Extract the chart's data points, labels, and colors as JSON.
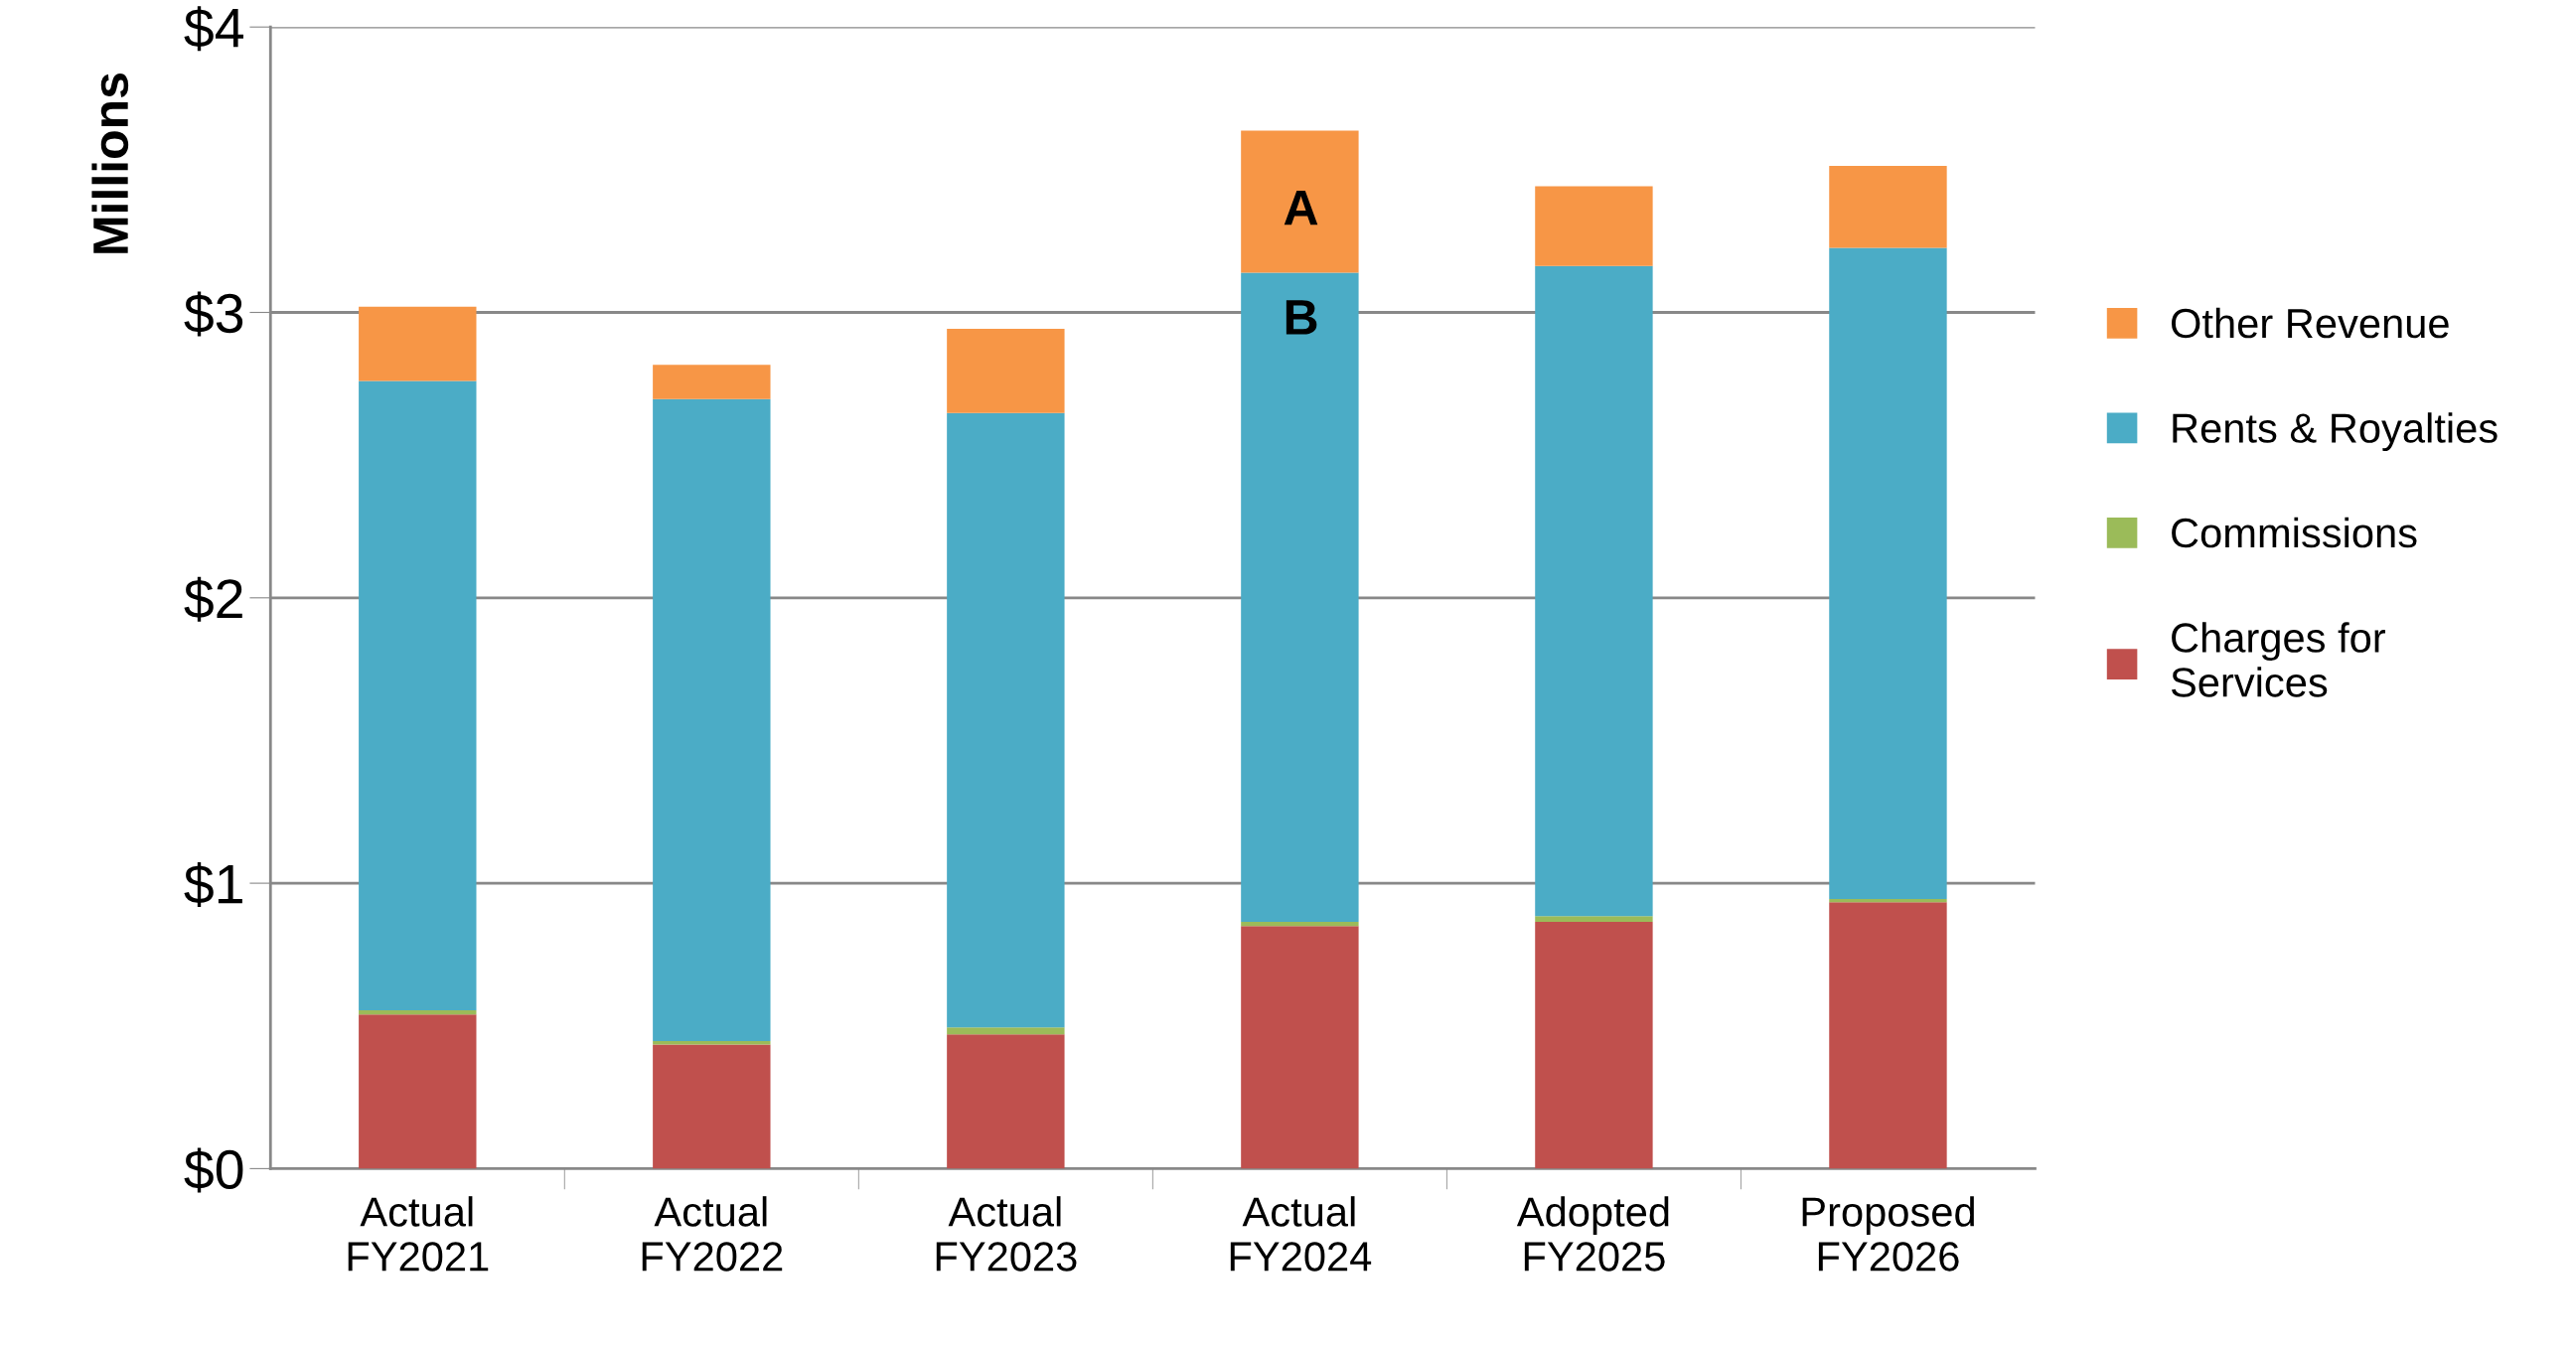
{
  "chart_data": {
    "type": "bar",
    "stacked": true,
    "ylabel": "Millions",
    "categories": [
      "Actual\nFY2021",
      "Actual\nFY2022",
      "Actual\nFY2023",
      "Actual\nFY2024",
      "Adopted\nFY2025",
      "Proposed\nFY2026"
    ],
    "series": [
      {
        "name": "Charges for\nServices",
        "color": "#c0504d",
        "values": [
          0.54,
          0.435,
          0.47,
          0.85,
          0.865,
          0.933
        ]
      },
      {
        "name": "Commissions",
        "color": "#9bbb59",
        "values": [
          0.015,
          0.012,
          0.025,
          0.015,
          0.02,
          0.012
        ]
      },
      {
        "name": "Rents & Royalties",
        "color": "#4bacc6",
        "values": [
          2.205,
          2.249,
          2.153,
          2.274,
          2.278,
          2.281
        ]
      },
      {
        "name": "Other Revenue",
        "color": "#f79646",
        "values": [
          0.26,
          0.12,
          0.295,
          0.498,
          0.279,
          0.287
        ]
      }
    ],
    "ylim": [
      0,
      4
    ],
    "yticks": [
      {
        "value": 0,
        "label": "$0"
      },
      {
        "value": 1,
        "label": "$1"
      },
      {
        "value": 2,
        "label": "$2"
      },
      {
        "value": 3,
        "label": "$3"
      },
      {
        "value": 4,
        "label": "$4"
      }
    ],
    "grid": "y",
    "legend": "right",
    "annotations": [
      "A",
      "B"
    ]
  }
}
